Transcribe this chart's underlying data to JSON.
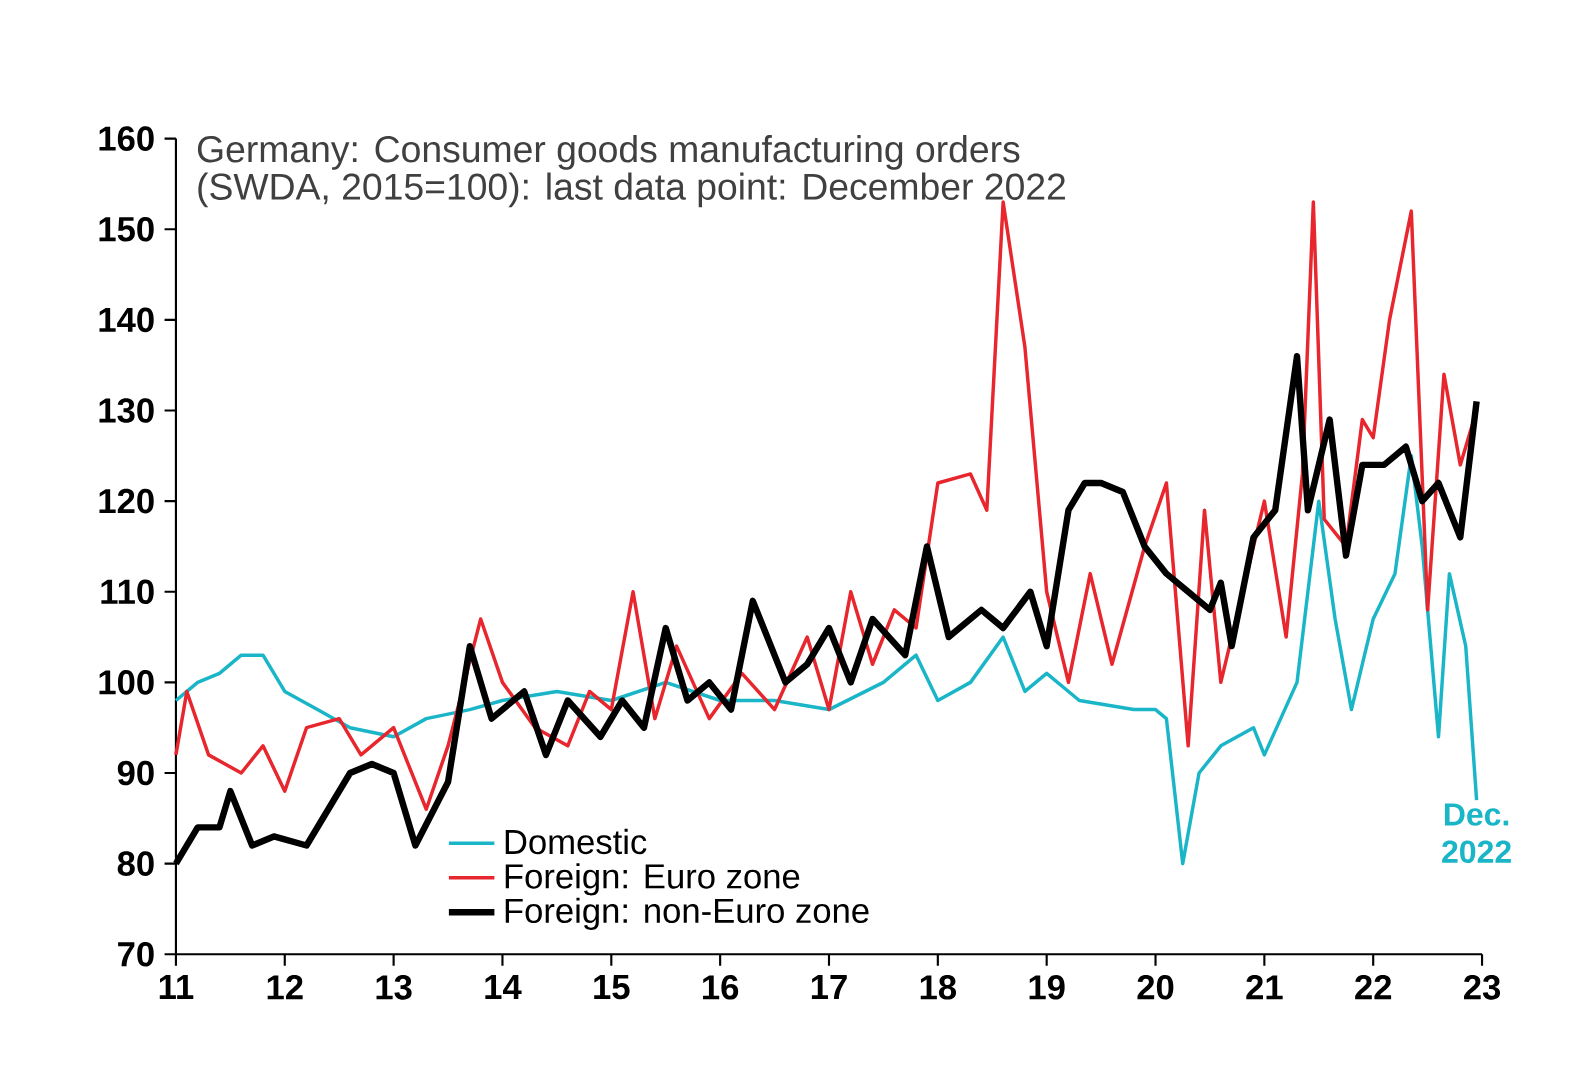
{
  "chart_data": {
    "type": "line",
    "title": "Germany: Consumer goods manufacturing orders",
    "subtitle": "(SWDA, 2015=100):  last data point: December 2022",
    "xlim": [
      11,
      23
    ],
    "xticks": [
      11,
      12,
      13,
      14,
      15,
      16,
      17,
      18,
      19,
      20,
      21,
      22,
      23
    ],
    "ylim": [
      70,
      160
    ],
    "yticks": [
      70,
      80,
      90,
      100,
      110,
      120,
      130,
      140,
      150,
      160
    ],
    "grid": false,
    "legend": "bottom left",
    "marker": "none",
    "line_style": "solid",
    "annotations": [
      {
        "text": "Dec. 2022",
        "x": 22.95,
        "y": 87
      }
    ],
    "series": [
      {
        "name": "Domestic",
        "color": "#1ab6c8",
        "x": [
          11.0,
          11.2,
          11.4,
          11.6,
          11.8,
          12.0,
          12.3,
          12.6,
          13.0,
          13.3,
          13.7,
          14.0,
          14.5,
          15.0,
          15.5,
          16.0,
          16.5,
          17.0,
          17.5,
          17.8,
          18.0,
          18.3,
          18.6,
          18.8,
          19.0,
          19.3,
          19.8,
          20.0,
          20.1,
          20.25,
          20.4,
          20.6,
          20.9,
          21.0,
          21.3,
          21.5,
          21.65,
          21.8,
          22.0,
          22.2,
          22.35,
          22.45,
          22.6,
          22.7,
          22.85,
          22.95
        ],
        "values": [
          98,
          100,
          101,
          103,
          103,
          99,
          97,
          95,
          94,
          96,
          97,
          98,
          99,
          98,
          100,
          98,
          98,
          97,
          100,
          103,
          98,
          100,
          105,
          99,
          101,
          98,
          97,
          97,
          96,
          80,
          90,
          93,
          95,
          92,
          100,
          120,
          107,
          97,
          107,
          112,
          125,
          115,
          94,
          112,
          104,
          87
        ]
      },
      {
        "name": "Foreign: Euro zone",
        "color": "#e8262e",
        "x": [
          11.0,
          11.1,
          11.3,
          11.6,
          11.8,
          12.0,
          12.2,
          12.5,
          12.7,
          13.0,
          13.3,
          13.5,
          13.8,
          14.0,
          14.3,
          14.6,
          14.8,
          15.0,
          15.2,
          15.4,
          15.6,
          15.9,
          16.2,
          16.5,
          16.8,
          17.0,
          17.2,
          17.4,
          17.6,
          17.8,
          18.0,
          18.3,
          18.45,
          18.6,
          18.8,
          19.0,
          19.2,
          19.4,
          19.6,
          19.9,
          20.1,
          20.3,
          20.45,
          20.6,
          20.8,
          21.0,
          21.2,
          21.35,
          21.45,
          21.55,
          21.75,
          21.9,
          22.0,
          22.15,
          22.35,
          22.5,
          22.65,
          22.8,
          22.95
        ],
        "values": [
          92,
          99,
          92,
          90,
          93,
          88,
          95,
          96,
          92,
          95,
          86,
          93,
          107,
          100,
          95,
          93,
          99,
          97,
          110,
          96,
          104,
          96,
          101,
          97,
          105,
          97,
          110,
          102,
          108,
          106,
          122,
          123,
          119,
          153,
          137,
          110,
          100,
          112,
          102,
          115,
          122,
          93,
          119,
          100,
          110,
          120,
          105,
          123,
          153,
          118,
          115,
          129,
          127,
          140,
          152,
          108,
          134,
          124,
          130
        ]
      },
      {
        "name": "Foreign: non-Euro zone",
        "color": "#000000",
        "x": [
          11.0,
          11.2,
          11.4,
          11.5,
          11.7,
          11.9,
          12.2,
          12.4,
          12.6,
          12.8,
          13.0,
          13.2,
          13.5,
          13.7,
          13.9,
          14.2,
          14.4,
          14.6,
          14.9,
          15.1,
          15.3,
          15.5,
          15.7,
          15.9,
          16.1,
          16.3,
          16.6,
          16.8,
          17.0,
          17.2,
          17.4,
          17.7,
          17.9,
          18.1,
          18.4,
          18.6,
          18.85,
          19.0,
          19.2,
          19.35,
          19.5,
          19.7,
          19.9,
          20.1,
          20.3,
          20.5,
          20.6,
          20.7,
          20.9,
          21.1,
          21.3,
          21.4,
          21.6,
          21.75,
          21.9,
          22.1,
          22.3,
          22.45,
          22.6,
          22.8,
          22.95
        ],
        "values": [
          80,
          84,
          84,
          88,
          82,
          83,
          82,
          86,
          90,
          91,
          90,
          82,
          89,
          104,
          96,
          99,
          92,
          98,
          94,
          98,
          95,
          106,
          98,
          100,
          97,
          109,
          100,
          102,
          106,
          100,
          107,
          103,
          115,
          105,
          108,
          106,
          110,
          104,
          119,
          122,
          122,
          121,
          115,
          112,
          110,
          108,
          111,
          104,
          116,
          119,
          136,
          119,
          129,
          114,
          124,
          124,
          126,
          120,
          122,
          116,
          131
        ]
      }
    ]
  }
}
